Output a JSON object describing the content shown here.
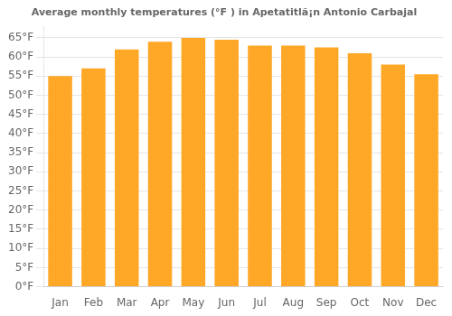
{
  "chart_data": {
    "type": "bar",
    "title": "Average monthly temperatures (°F ) in Apetatitlã¡n Antonio Carbajal",
    "categories": [
      "Jan",
      "Feb",
      "Mar",
      "Apr",
      "May",
      "Jun",
      "Jul",
      "Aug",
      "Sep",
      "Oct",
      "Nov",
      "Dec"
    ],
    "values": [
      55,
      57,
      62,
      64,
      65,
      64.5,
      63,
      63,
      62.5,
      61,
      58,
      55.5
    ],
    "color": "#FFA726",
    "ylim": [
      0,
      68
    ],
    "yticks": [
      {
        "value": 0,
        "label": "0°F"
      },
      {
        "value": 5,
        "label": "5°F"
      },
      {
        "value": 10,
        "label": "10°F"
      },
      {
        "value": 15,
        "label": "15°F"
      },
      {
        "value": 20,
        "label": "20°F"
      },
      {
        "value": 25,
        "label": "25°F"
      },
      {
        "value": 30,
        "label": "30°F"
      },
      {
        "value": 35,
        "label": "35°F"
      },
      {
        "value": 40,
        "label": "40°F"
      },
      {
        "value": 45,
        "label": "45°F"
      },
      {
        "value": 50,
        "label": "50°F"
      },
      {
        "value": 55,
        "label": "55°F"
      },
      {
        "value": 60,
        "label": "60°F"
      },
      {
        "value": 65,
        "label": "65°F"
      }
    ],
    "grid": true
  }
}
